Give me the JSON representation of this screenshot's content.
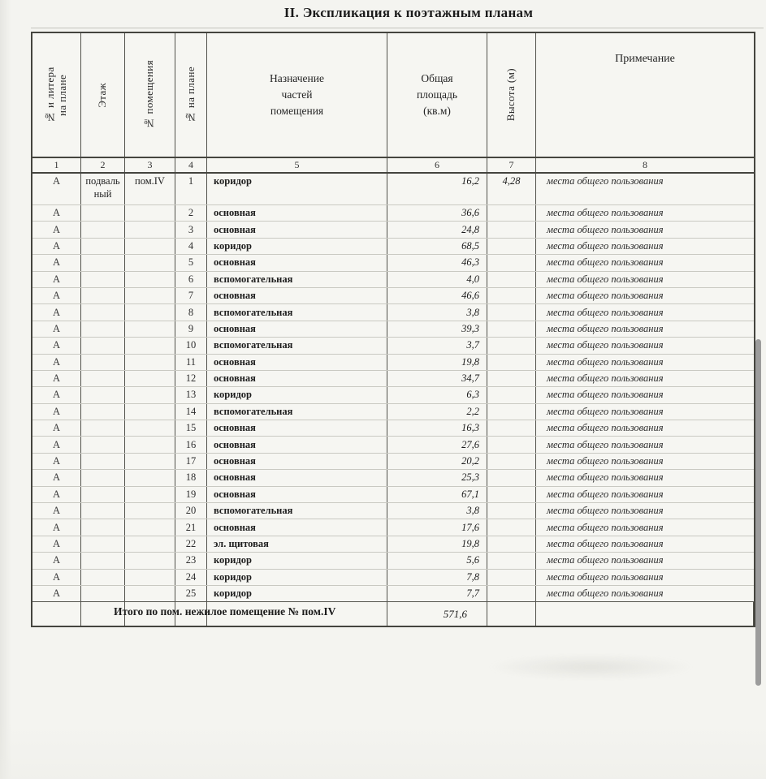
{
  "page": {
    "title": "II. Экспликация к поэтажным планам"
  },
  "table": {
    "headers": {
      "col1": "№ и литера на плане",
      "col2": "Этаж",
      "col3": "№ помещения",
      "col4": "№ на плане",
      "col5": "Назначение частей помещения",
      "col6": "Общая площадь (кв.м)",
      "col7": "Высота (м)",
      "col8": "Примечание"
    },
    "column_numbers": [
      "1",
      "2",
      "3",
      "4",
      "5",
      "6",
      "7",
      "8"
    ],
    "rows": [
      {
        "litera": "А",
        "floor": "подвальный",
        "room": "пом.IV",
        "plan_no": "1",
        "purpose": "коридор",
        "area": "16,2",
        "height": "4,28",
        "note": "места общего пользования"
      },
      {
        "litera": "А",
        "floor": "",
        "room": "",
        "plan_no": "2",
        "purpose": "основная",
        "area": "36,6",
        "height": "",
        "note": "места общего пользования"
      },
      {
        "litera": "А",
        "floor": "",
        "room": "",
        "plan_no": "3",
        "purpose": "основная",
        "area": "24,8",
        "height": "",
        "note": "места общего пользования"
      },
      {
        "litera": "А",
        "floor": "",
        "room": "",
        "plan_no": "4",
        "purpose": "коридор",
        "area": "68,5",
        "height": "",
        "note": "места общего пользования"
      },
      {
        "litera": "А",
        "floor": "",
        "room": "",
        "plan_no": "5",
        "purpose": "основная",
        "area": "46,3",
        "height": "",
        "note": "места общего пользования"
      },
      {
        "litera": "А",
        "floor": "",
        "room": "",
        "plan_no": "6",
        "purpose": "вспомогательная",
        "area": "4,0",
        "height": "",
        "note": "места общего пользования"
      },
      {
        "litera": "А",
        "floor": "",
        "room": "",
        "plan_no": "7",
        "purpose": "основная",
        "area": "46,6",
        "height": "",
        "note": "места общего пользования"
      },
      {
        "litera": "А",
        "floor": "",
        "room": "",
        "plan_no": "8",
        "purpose": "вспомогательная",
        "area": "3,8",
        "height": "",
        "note": "места общего пользования"
      },
      {
        "litera": "А",
        "floor": "",
        "room": "",
        "plan_no": "9",
        "purpose": "основная",
        "area": "39,3",
        "height": "",
        "note": "места общего пользования"
      },
      {
        "litera": "А",
        "floor": "",
        "room": "",
        "plan_no": "10",
        "purpose": "вспомогательная",
        "area": "3,7",
        "height": "",
        "note": "места общего пользования"
      },
      {
        "litera": "А",
        "floor": "",
        "room": "",
        "plan_no": "11",
        "purpose": "основная",
        "area": "19,8",
        "height": "",
        "note": "места общего пользования"
      },
      {
        "litera": "А",
        "floor": "",
        "room": "",
        "plan_no": "12",
        "purpose": "основная",
        "area": "34,7",
        "height": "",
        "note": "места общего пользования"
      },
      {
        "litera": "А",
        "floor": "",
        "room": "",
        "plan_no": "13",
        "purpose": "коридор",
        "area": "6,3",
        "height": "",
        "note": "места общего пользования"
      },
      {
        "litera": "А",
        "floor": "",
        "room": "",
        "plan_no": "14",
        "purpose": "вспомогательная",
        "area": "2,2",
        "height": "",
        "note": "места общего пользования"
      },
      {
        "litera": "А",
        "floor": "",
        "room": "",
        "plan_no": "15",
        "purpose": "основная",
        "area": "16,3",
        "height": "",
        "note": "места общего пользования"
      },
      {
        "litera": "А",
        "floor": "",
        "room": "",
        "plan_no": "16",
        "purpose": "основная",
        "area": "27,6",
        "height": "",
        "note": "места общего пользования"
      },
      {
        "litera": "А",
        "floor": "",
        "room": "",
        "plan_no": "17",
        "purpose": "основная",
        "area": "20,2",
        "height": "",
        "note": "места общего пользования"
      },
      {
        "litera": "А",
        "floor": "",
        "room": "",
        "plan_no": "18",
        "purpose": "основная",
        "area": "25,3",
        "height": "",
        "note": "места общего пользования"
      },
      {
        "litera": "А",
        "floor": "",
        "room": "",
        "plan_no": "19",
        "purpose": "основная",
        "area": "67,1",
        "height": "",
        "note": "места общего пользования"
      },
      {
        "litera": "А",
        "floor": "",
        "room": "",
        "plan_no": "20",
        "purpose": "вспомогательная",
        "area": "3,8",
        "height": "",
        "note": "места общего пользования"
      },
      {
        "litera": "А",
        "floor": "",
        "room": "",
        "plan_no": "21",
        "purpose": "основная",
        "area": "17,6",
        "height": "",
        "note": "места общего пользования"
      },
      {
        "litera": "А",
        "floor": "",
        "room": "",
        "plan_no": "22",
        "purpose": "эл. щитовая",
        "area": "19,8",
        "height": "",
        "note": "места общего пользования"
      },
      {
        "litera": "А",
        "floor": "",
        "room": "",
        "plan_no": "23",
        "purpose": "коридор",
        "area": "5,6",
        "height": "",
        "note": "места общего пользования"
      },
      {
        "litera": "А",
        "floor": "",
        "room": "",
        "plan_no": "24",
        "purpose": "коридор",
        "area": "7,8",
        "height": "",
        "note": "места общего пользования"
      },
      {
        "litera": "А",
        "floor": "",
        "room": "",
        "plan_no": "25",
        "purpose": "коридор",
        "area": "7,7",
        "height": "",
        "note": "места общего пользования"
      }
    ],
    "total": {
      "label": "Итого по пом. нежилое помещение № пом.IV",
      "area": "571,6"
    }
  }
}
